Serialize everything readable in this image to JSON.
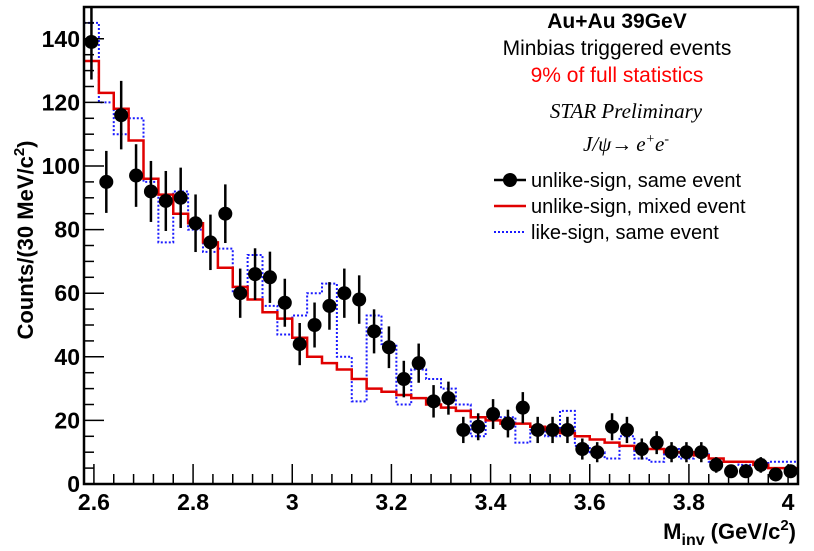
{
  "chart_data": {
    "type": "histogram",
    "x_range": [
      2.58,
      4.02
    ],
    "y_range": [
      0,
      150
    ],
    "bin_width": 0.03,
    "xlabel": {
      "main": "M",
      "sub": "inv",
      "units_pre": "(GeV/c",
      "units_sup": "2",
      "units_post": ")"
    },
    "ylabel": {
      "main": "Counts/(30 MeV/c",
      "sup": "2",
      "post": ")"
    },
    "x_ticks": [
      2.6,
      2.8,
      3.0,
      3.2,
      3.4,
      3.6,
      3.8,
      4.0
    ],
    "x_tick_labels": [
      "2.6",
      "2.8",
      "3",
      "3.2",
      "3.4",
      "3.6",
      "3.8",
      "4"
    ],
    "y_ticks": [
      0,
      20,
      40,
      60,
      80,
      100,
      120,
      140
    ],
    "y_tick_labels": [
      "0",
      "20",
      "40",
      "60",
      "80",
      "100",
      "120",
      "140"
    ],
    "annotations": {
      "line1": "Au+Au 39GeV",
      "line2": "Minbias triggered events",
      "line3": "9% of full statistics",
      "line4": "STAR Preliminary",
      "decay": {
        "particle": "J/ψ",
        "arrow": "→",
        "e1": "e",
        "e1_sup": "+",
        "e2": "e",
        "e2_sup": "-"
      }
    },
    "colors": {
      "unlike_same": "#000000",
      "mixed": "#e00000",
      "like": "#1a1aff",
      "highlight": "#ff0000"
    },
    "series": [
      {
        "name": "unlike-sign, same event",
        "style": "points",
        "x": [
          2.595,
          2.625,
          2.655,
          2.685,
          2.715,
          2.745,
          2.775,
          2.805,
          2.835,
          2.865,
          2.895,
          2.925,
          2.955,
          2.985,
          3.015,
          3.045,
          3.075,
          3.105,
          3.135,
          3.165,
          3.195,
          3.225,
          3.255,
          3.285,
          3.315,
          3.345,
          3.375,
          3.405,
          3.435,
          3.465,
          3.495,
          3.525,
          3.555,
          3.585,
          3.615,
          3.645,
          3.675,
          3.705,
          3.735,
          3.765,
          3.795,
          3.825,
          3.855,
          3.885,
          3.915,
          3.945,
          3.975,
          4.005
        ],
        "y": [
          139,
          95,
          116,
          97,
          92,
          89,
          90,
          82,
          76,
          85,
          60,
          66,
          65,
          57,
          44,
          50,
          56,
          60,
          58,
          48,
          43,
          33,
          38,
          26,
          27,
          17,
          18,
          22,
          19,
          24,
          17,
          17,
          17,
          11,
          10,
          18,
          17,
          11,
          13,
          10,
          10,
          10,
          6,
          4,
          4,
          6,
          3,
          4
        ]
      },
      {
        "name": "unlike-sign, mixed event",
        "style": "step",
        "y": [
          133,
          123,
          118,
          108,
          96,
          91,
          85,
          82,
          76,
          68,
          62,
          58,
          54,
          52,
          46,
          40,
          38,
          36,
          33,
          30,
          29,
          28,
          27,
          25,
          24,
          23,
          21,
          20,
          19,
          19,
          18,
          17,
          16,
          15,
          14,
          13,
          12,
          11,
          11,
          10,
          10,
          9,
          8,
          7,
          7,
          6,
          5,
          5
        ]
      },
      {
        "name": "like-sign, same event",
        "style": "step_dotted",
        "y": [
          145,
          120,
          110,
          115,
          95,
          76,
          92,
          80,
          73,
          74,
          60,
          72,
          56,
          47,
          53,
          60,
          63,
          40,
          26,
          53,
          44,
          25,
          36,
          33,
          30,
          25,
          15,
          20,
          21,
          13,
          17,
          15,
          23,
          12,
          10,
          8,
          15,
          8,
          7,
          11,
          8,
          10,
          7,
          7,
          6,
          6,
          7,
          7
        ]
      }
    ]
  }
}
